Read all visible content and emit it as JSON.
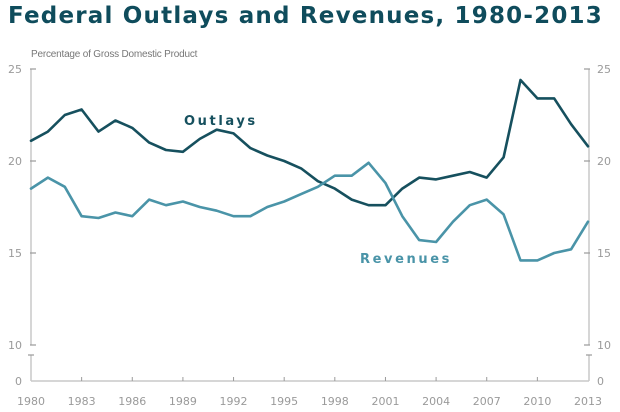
{
  "chart_data": {
    "type": "line",
    "title": "Federal Outlays and Revenues, 1980-2013",
    "ylabel": "Percentage of Gross Domestic Product",
    "xlabel": "",
    "x": [
      1980,
      1981,
      1982,
      1983,
      1984,
      1985,
      1986,
      1987,
      1988,
      1989,
      1990,
      1991,
      1992,
      1993,
      1994,
      1995,
      1996,
      1997,
      1998,
      1999,
      2000,
      2001,
      2002,
      2003,
      2004,
      2005,
      2006,
      2007,
      2008,
      2009,
      2010,
      2011,
      2012,
      2013
    ],
    "x_ticks": [
      "1980",
      "1983",
      "1986",
      "1989",
      "1992",
      "1995",
      "1998",
      "2001",
      "2004",
      "2007",
      "2010",
      "2013"
    ],
    "y_ticks": [
      "0",
      "10",
      "15",
      "20",
      "25"
    ],
    "ylim": [
      0,
      25
    ],
    "y_axis_break": [
      0,
      10
    ],
    "grid": false,
    "dual_y_axis": true,
    "series": [
      {
        "name": "Outlays",
        "color": "#16505e",
        "values": [
          21.1,
          21.6,
          22.5,
          22.8,
          21.6,
          22.2,
          21.8,
          21.0,
          20.6,
          20.5,
          21.2,
          21.7,
          21.5,
          20.7,
          20.3,
          20.0,
          19.6,
          18.9,
          18.5,
          17.9,
          17.6,
          17.6,
          18.5,
          19.1,
          19.0,
          19.2,
          19.4,
          19.1,
          20.2,
          24.4,
          23.4,
          23.4,
          22.0,
          20.8
        ]
      },
      {
        "name": "Revenues",
        "color": "#4a94a8",
        "values": [
          18.5,
          19.1,
          18.6,
          17.0,
          16.9,
          17.2,
          17.0,
          17.9,
          17.6,
          17.8,
          17.5,
          17.3,
          17.0,
          17.0,
          17.5,
          17.8,
          18.2,
          18.6,
          19.2,
          19.2,
          19.9,
          18.8,
          17.0,
          15.7,
          15.6,
          16.7,
          17.6,
          17.9,
          17.1,
          14.6,
          14.6,
          15.0,
          15.2,
          16.7
        ]
      }
    ],
    "annotations": [
      {
        "text": "Outlays",
        "series": "Outlays",
        "near_x": 1991
      },
      {
        "text": "Revenues",
        "series": "Revenues",
        "near_x": 2003
      }
    ]
  }
}
